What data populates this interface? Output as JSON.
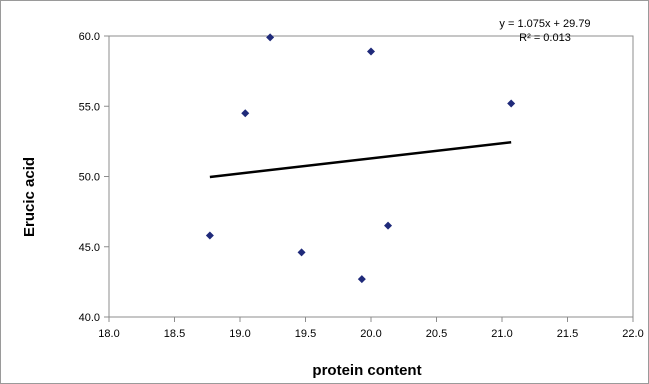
{
  "chart_data": {
    "type": "scatter",
    "xlabel": "protein content",
    "ylabel": "Erucic acid",
    "xlim": [
      18.0,
      22.0
    ],
    "ylim": [
      40.0,
      60.0
    ],
    "x_ticks": [
      "18.0",
      "18.5",
      "19.0",
      "19.5",
      "20.0",
      "20.5",
      "21.0",
      "21.5",
      "22.0"
    ],
    "y_ticks": [
      "40.0",
      "45.0",
      "50.0",
      "55.0",
      "60.0"
    ],
    "grid": false,
    "series": [
      {
        "marker": "diamond",
        "color": "#1f2a7a",
        "points": [
          {
            "x": 19.23,
            "y": 59.9
          },
          {
            "x": 20.0,
            "y": 58.9
          },
          {
            "x": 19.04,
            "y": 54.5
          },
          {
            "x": 21.07,
            "y": 55.2
          },
          {
            "x": 18.77,
            "y": 45.8
          },
          {
            "x": 19.47,
            "y": 44.6
          },
          {
            "x": 19.93,
            "y": 42.7
          },
          {
            "x": 20.13,
            "y": 46.5
          }
        ]
      }
    ],
    "trendline": {
      "slope": 1.075,
      "intercept": 29.79,
      "x_range": [
        18.77,
        21.07
      ],
      "color": "#000000",
      "equation": "y = 1.075x + 29.79",
      "r_squared": "R² = 0.013"
    }
  }
}
